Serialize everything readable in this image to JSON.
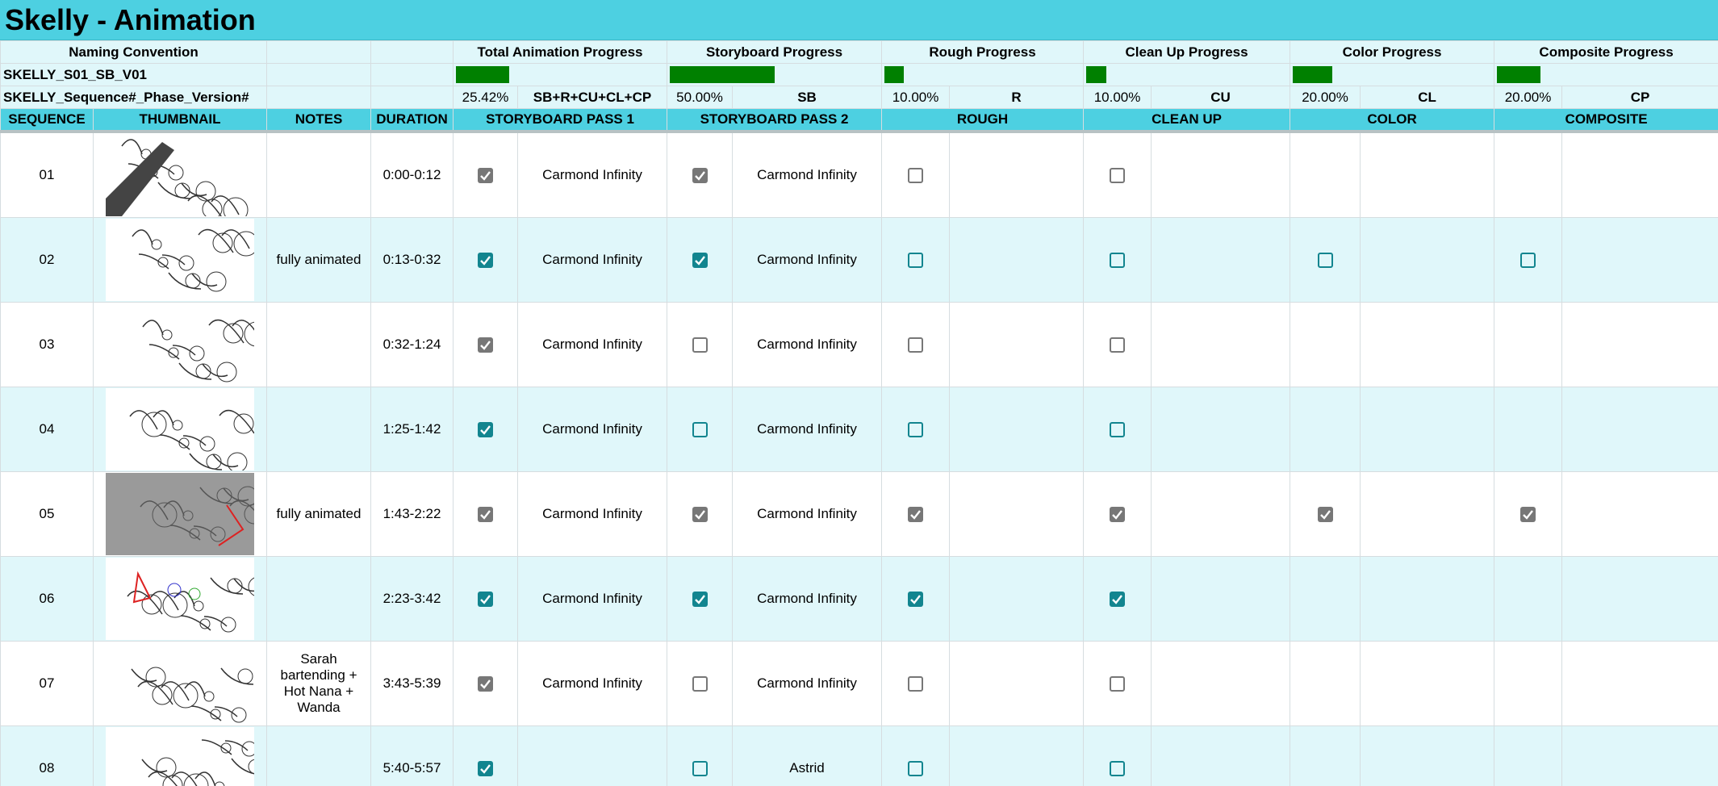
{
  "title": "Skelly - Animation",
  "naming": {
    "label": "Naming Convention",
    "example": "SKELLY_S01_SB_V01",
    "pattern": "SKELLY_Sequence#_Phase_Version#"
  },
  "progress": [
    {
      "label": "Total Animation Progress",
      "value": 25.42,
      "value_label": "25.42%",
      "code": "SB+R+CU+CL+CP"
    },
    {
      "label": "Storyboard Progress",
      "value": 50,
      "value_label": "50.00%",
      "code": "SB"
    },
    {
      "label": "Rough Progress",
      "value": 10,
      "value_label": "10.00%",
      "code": "R"
    },
    {
      "label": "Clean Up Progress",
      "value": 10,
      "value_label": "10.00%",
      "code": "CU"
    },
    {
      "label": "Color Progress",
      "value": 20,
      "value_label": "20.00%",
      "code": "CL"
    },
    {
      "label": "Composite Progress",
      "value": 20,
      "value_label": "20.00%",
      "code": "CP"
    }
  ],
  "columns": [
    "SEQUENCE",
    "THUMBNAIL",
    "NOTES",
    "DURATION",
    "STORYBOARD PASS 1",
    "STORYBOARD PASS 2",
    "ROUGH",
    "CLEAN UP",
    "COLOR",
    "COMPOSITE"
  ],
  "rows": [
    {
      "sequence": "01",
      "notes": null,
      "duration": "0:00-0:12",
      "checks": [
        true,
        true,
        false,
        false,
        null,
        null
      ],
      "artists": [
        "Carmond Infinity",
        "Carmond Infinity"
      ]
    },
    {
      "sequence": "02",
      "notes": "fully animated",
      "duration": "0:13-0:32",
      "checks": [
        true,
        true,
        false,
        false,
        false,
        false
      ],
      "artists": [
        "Carmond Infinity",
        "Carmond Infinity"
      ]
    },
    {
      "sequence": "03",
      "notes": null,
      "duration": "0:32-1:24",
      "checks": [
        true,
        false,
        false,
        false,
        null,
        null
      ],
      "artists": [
        "Carmond Infinity",
        "Carmond Infinity"
      ]
    },
    {
      "sequence": "04",
      "notes": null,
      "duration": "1:25-1:42",
      "checks": [
        true,
        false,
        false,
        false,
        null,
        null
      ],
      "artists": [
        "Carmond Infinity",
        "Carmond Infinity"
      ]
    },
    {
      "sequence": "05",
      "notes": "fully animated",
      "duration": "1:43-2:22",
      "checks": [
        true,
        true,
        true,
        true,
        true,
        true
      ],
      "artists": [
        "Carmond Infinity",
        "Carmond Infinity"
      ]
    },
    {
      "sequence": "06",
      "notes": null,
      "duration": "2:23-3:42",
      "checks": [
        true,
        true,
        true,
        true,
        null,
        null
      ],
      "artists": [
        "Carmond Infinity",
        "Carmond Infinity"
      ]
    },
    {
      "sequence": "07",
      "notes": "Sarah bartending + Hot Nana + Wanda",
      "duration": "3:43-5:39",
      "checks": [
        true,
        false,
        false,
        false,
        null,
        null
      ],
      "artists": [
        "Carmond Infinity",
        "Carmond Infinity"
      ]
    },
    {
      "sequence": "08",
      "notes": null,
      "duration": "5:40-5:57",
      "checks": [
        true,
        false,
        false,
        false,
        null,
        null
      ],
      "artists": [
        null,
        "Astrid"
      ]
    }
  ]
}
